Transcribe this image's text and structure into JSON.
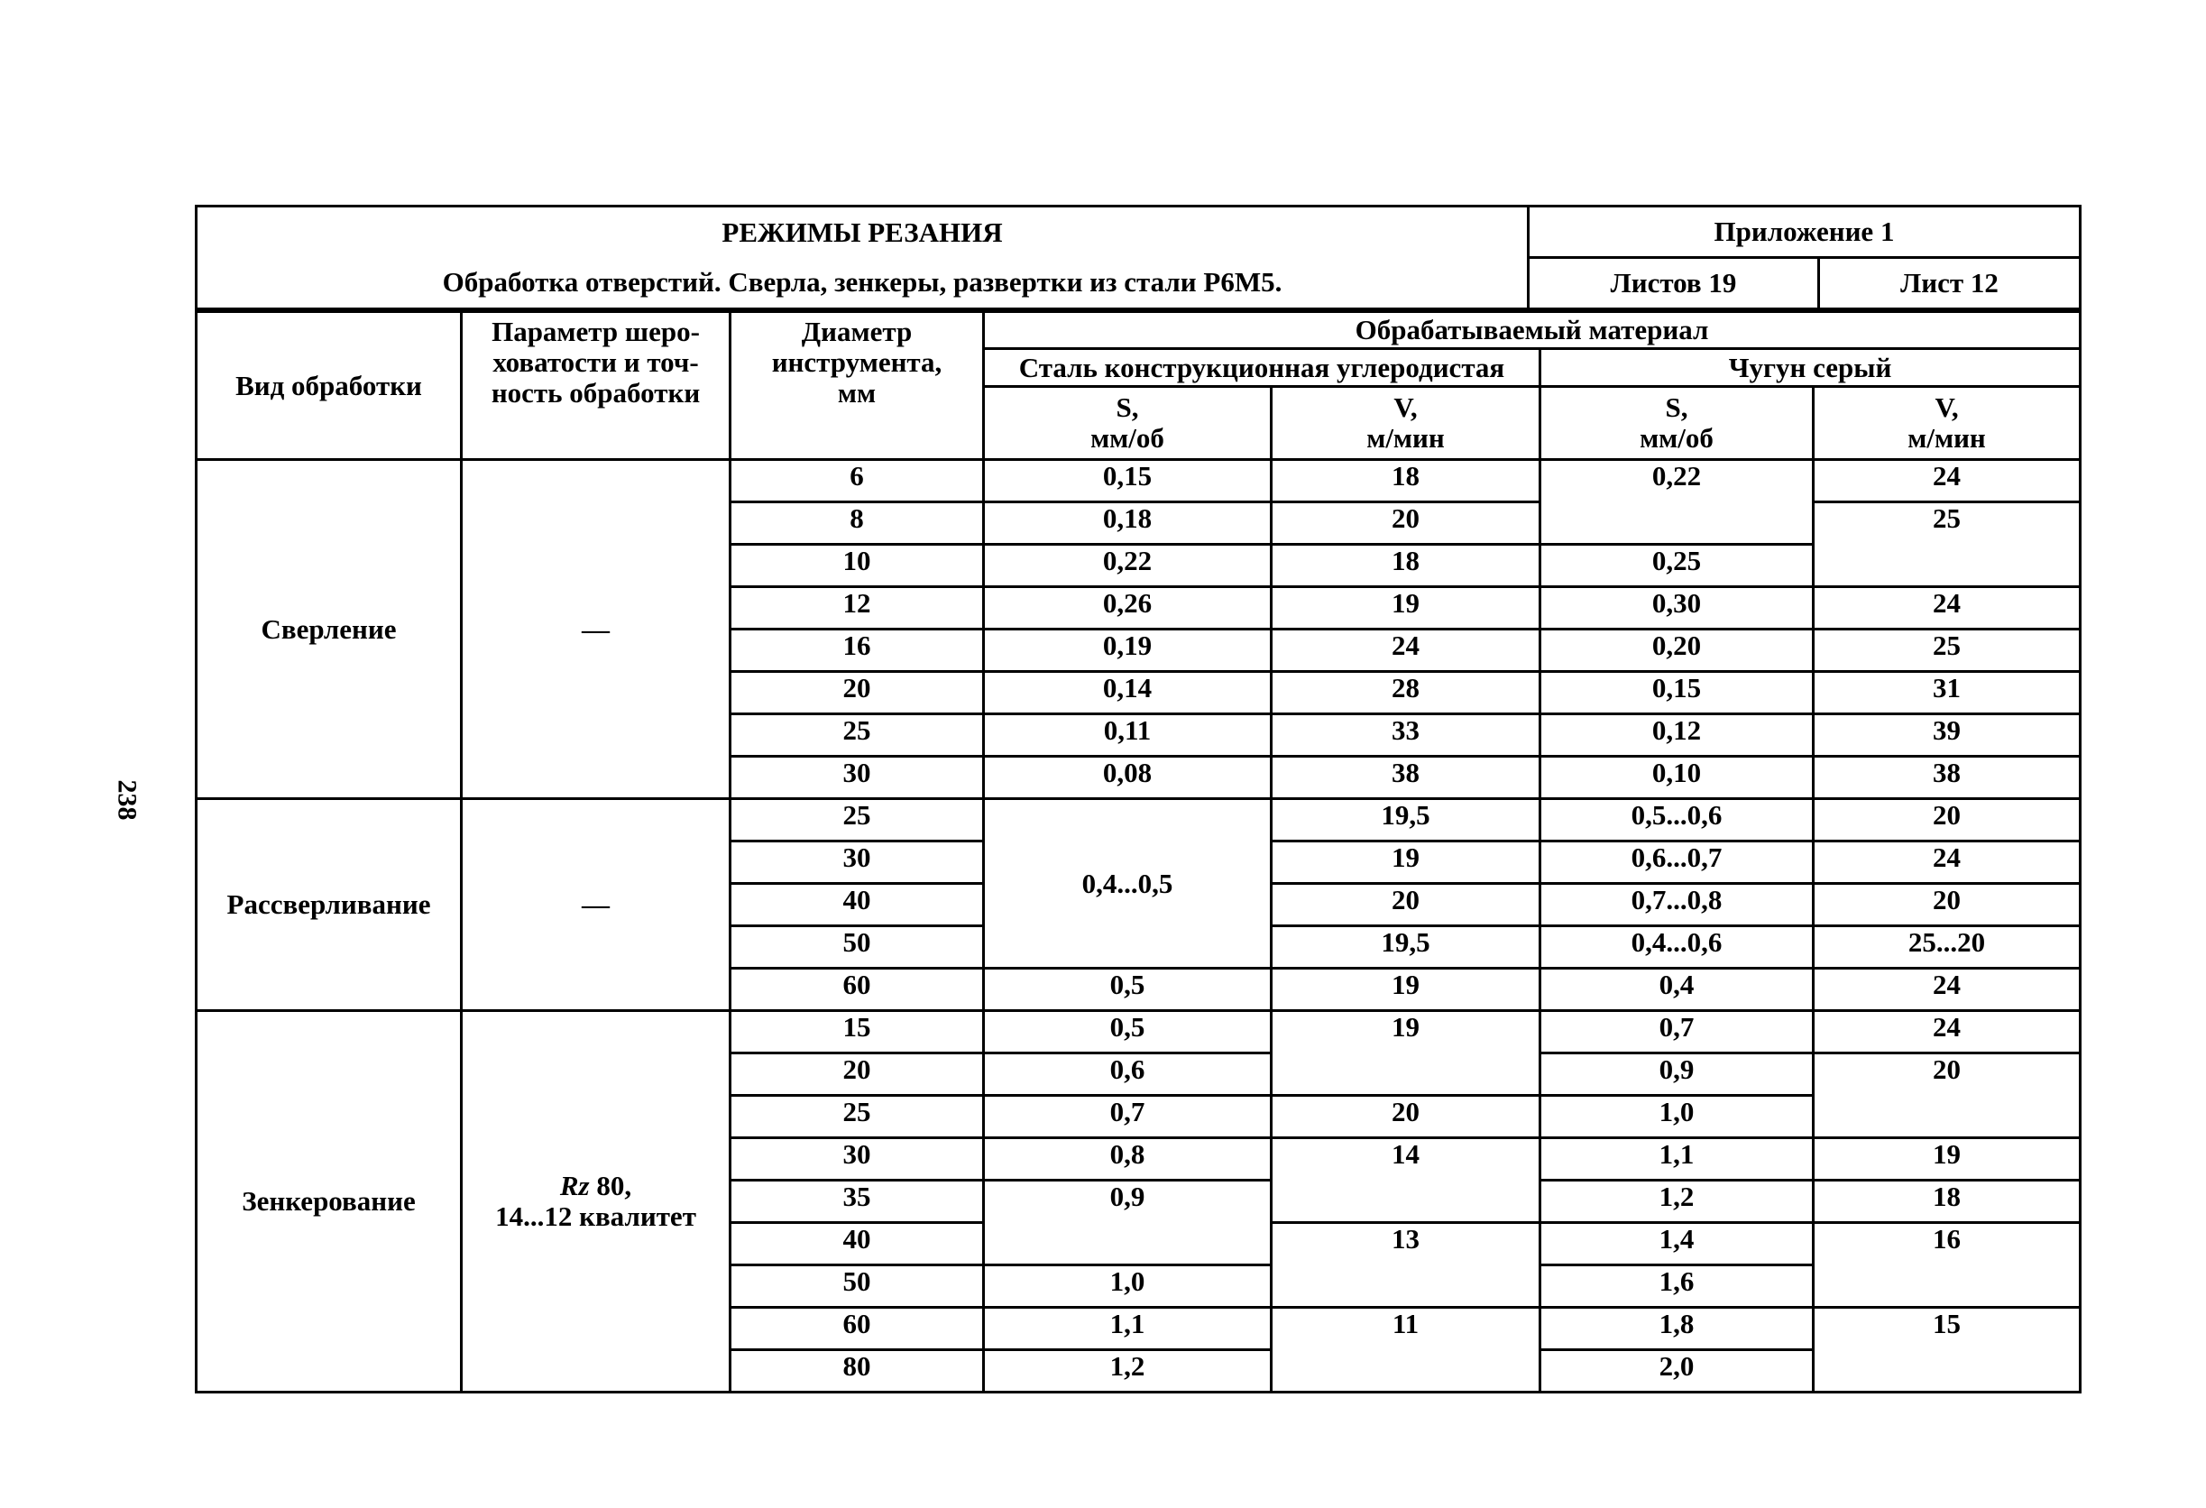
{
  "page_number": "238",
  "title": {
    "main": "РЕЖИМЫ РЕЗАНИЯ",
    "subtitle": "Обработка отверстий. Сверла, зенкеры, развертки из стали  Р6М5.",
    "appendix": "Приложение 1",
    "sheets_total": "Листов 19",
    "sheet": "Лист 12"
  },
  "header": {
    "process": "Вид обработки",
    "roughness": "Параметр шеро-\nховатости и точ-\nность обработки",
    "diameter": "Диаметр\nинструмента,\nмм",
    "material": "Обрабатываемый материал",
    "steel": "Сталь конструкционная углеродистая",
    "cast_iron": "Чугун серый",
    "s_label": "S,\nмм/об",
    "v_label": "V,\nм/мин"
  },
  "rows": [
    [
      {
        "v": "Сверление",
        "rs": 8,
        "mid": true
      },
      {
        "v": "—",
        "rs": 8,
        "mid": true
      },
      "6",
      "0,15",
      "18",
      {
        "v": "0,22",
        "rs": 2
      },
      "24"
    ],
    [
      "8",
      "0,18",
      "20",
      {
        "v": "25",
        "rs": 2
      }
    ],
    [
      "10",
      "0,22",
      "18",
      "0,25"
    ],
    [
      "12",
      "0,26",
      "19",
      "0,30",
      "24"
    ],
    [
      "16",
      "0,19",
      "24",
      "0,20",
      "25"
    ],
    [
      "20",
      "0,14",
      "28",
      "0,15",
      "31"
    ],
    [
      "25",
      "0,11",
      "33",
      "0,12",
      "39"
    ],
    [
      "30",
      "0,08",
      "38",
      "0,10",
      "38"
    ],
    [
      {
        "v": "Рассверливание",
        "rs": 5,
        "mid": true
      },
      {
        "v": "—",
        "rs": 5,
        "mid": true
      },
      "25",
      {
        "v": "0,4...0,5",
        "rs": 4,
        "mid": true
      },
      "19,5",
      "0,5...0,6",
      "20"
    ],
    [
      "30",
      "19",
      "0,6...0,7",
      "24"
    ],
    [
      "40",
      "20",
      "0,7...0,8",
      "20"
    ],
    [
      "50",
      "19,5",
      "0,4...0,6",
      "25...20"
    ],
    [
      "60",
      "0,5",
      "19",
      "0,4",
      "24"
    ],
    [
      {
        "v": "Зенкерование",
        "rs": 9,
        "mid": true
      },
      {
        "ital": "Rz",
        "v": " 80,\n14...12 квалитет",
        "rs": 9,
        "mid": true
      },
      "15",
      "0,5",
      {
        "v": "19",
        "rs": 2
      },
      "0,7",
      "24"
    ],
    [
      "20",
      "0,6",
      "0,9",
      {
        "v": "20",
        "rs": 2
      }
    ],
    [
      "25",
      "0,7",
      "20",
      "1,0"
    ],
    [
      "30",
      "0,8",
      {
        "v": "14",
        "rs": 2
      },
      "1,1",
      "19"
    ],
    [
      "35",
      {
        "v": "0,9",
        "rs": 2
      },
      "1,2",
      "18"
    ],
    [
      "40",
      {
        "v": "13",
        "rs": 2
      },
      "1,4",
      {
        "v": "16",
        "rs": 2
      }
    ],
    [
      "50",
      "1,0",
      "1,6"
    ],
    [
      "60",
      "1,1",
      {
        "v": "11",
        "rs": 2
      },
      "1,8",
      {
        "v": "15",
        "rs": 2
      }
    ],
    [
      "80",
      "1,2",
      "2,0"
    ]
  ]
}
